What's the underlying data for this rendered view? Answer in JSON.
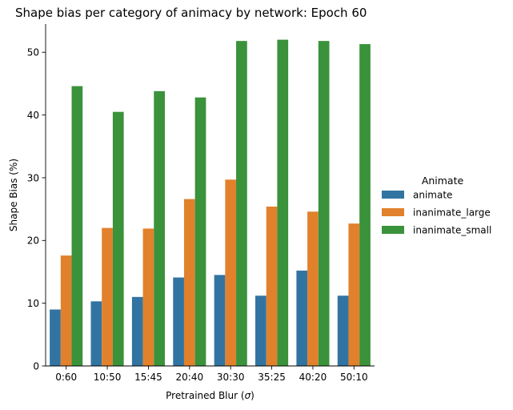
{
  "chart_data": {
    "type": "bar",
    "title": "Shape bias per category of animacy by network: Epoch 60",
    "xlabel_prefix": "Pretrained Blur (",
    "xlabel_symbol": "σ",
    "xlabel_suffix": ")",
    "ylabel": "Shape Bias (%)",
    "ylim": [
      0,
      54.5
    ],
    "yticks": [
      0,
      10,
      20,
      30,
      40,
      50
    ],
    "categories": [
      "0:60",
      "10:50",
      "15:45",
      "20:40",
      "30:30",
      "35:25",
      "40:20",
      "50:10"
    ],
    "legend": {
      "title": "Animate",
      "placement": "right"
    },
    "series": [
      {
        "name": "animate",
        "color": "#3274a1",
        "values": [
          9.0,
          10.3,
          11.0,
          14.1,
          14.5,
          11.2,
          15.2,
          11.2
        ]
      },
      {
        "name": "inanimate_large",
        "color": "#e1812c",
        "values": [
          17.6,
          22.0,
          21.9,
          26.6,
          29.7,
          25.4,
          24.6,
          22.7
        ]
      },
      {
        "name": "inanimate_small",
        "color": "#3a923a",
        "values": [
          44.6,
          40.5,
          43.8,
          42.8,
          51.8,
          52.0,
          51.8,
          51.3
        ]
      }
    ]
  }
}
